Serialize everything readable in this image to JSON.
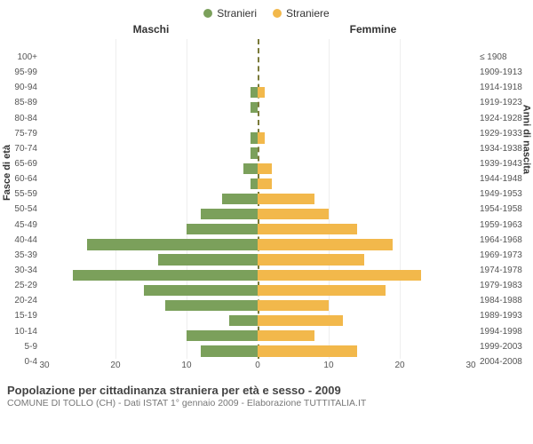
{
  "legend": {
    "male": {
      "label": "Stranieri",
      "color": "#7ba05b"
    },
    "female": {
      "label": "Straniere",
      "color": "#f2b84b"
    }
  },
  "headers": {
    "left": "Maschi",
    "right": "Femmine"
  },
  "axis": {
    "left_title": "Fasce di età",
    "right_title": "Anni di nascita",
    "xmax": 30,
    "xticks": [
      30,
      20,
      10,
      0,
      10,
      20,
      30
    ]
  },
  "chart": {
    "type": "population-pyramid",
    "background_color": "#ffffff",
    "grid_color": "#eeeeee",
    "centerline_color": "#7a7a3a",
    "male_color": "#7ba05b",
    "female_color": "#f2b84b",
    "rows": [
      {
        "age": "100+",
        "birth": "≤ 1908",
        "m": 0,
        "f": 0
      },
      {
        "age": "95-99",
        "birth": "1909-1913",
        "m": 0,
        "f": 0
      },
      {
        "age": "90-94",
        "birth": "1914-1918",
        "m": 0,
        "f": 0
      },
      {
        "age": "85-89",
        "birth": "1919-1923",
        "m": 1,
        "f": 1
      },
      {
        "age": "80-84",
        "birth": "1924-1928",
        "m": 1,
        "f": 0
      },
      {
        "age": "75-79",
        "birth": "1929-1933",
        "m": 0,
        "f": 0
      },
      {
        "age": "70-74",
        "birth": "1934-1938",
        "m": 1,
        "f": 1
      },
      {
        "age": "65-69",
        "birth": "1939-1943",
        "m": 1,
        "f": 0
      },
      {
        "age": "60-64",
        "birth": "1944-1948",
        "m": 2,
        "f": 2
      },
      {
        "age": "55-59",
        "birth": "1949-1953",
        "m": 1,
        "f": 2
      },
      {
        "age": "50-54",
        "birth": "1954-1958",
        "m": 5,
        "f": 8
      },
      {
        "age": "45-49",
        "birth": "1959-1963",
        "m": 8,
        "f": 10
      },
      {
        "age": "40-44",
        "birth": "1964-1968",
        "m": 10,
        "f": 14
      },
      {
        "age": "35-39",
        "birth": "1969-1973",
        "m": 24,
        "f": 19
      },
      {
        "age": "30-34",
        "birth": "1974-1978",
        "m": 14,
        "f": 15
      },
      {
        "age": "25-29",
        "birth": "1979-1983",
        "m": 26,
        "f": 23
      },
      {
        "age": "20-24",
        "birth": "1984-1988",
        "m": 16,
        "f": 18
      },
      {
        "age": "15-19",
        "birth": "1989-1993",
        "m": 13,
        "f": 10
      },
      {
        "age": "10-14",
        "birth": "1994-1998",
        "m": 4,
        "f": 12
      },
      {
        "age": "5-9",
        "birth": "1999-2003",
        "m": 10,
        "f": 8
      },
      {
        "age": "0-4",
        "birth": "2004-2008",
        "m": 8,
        "f": 14
      }
    ]
  },
  "footer": {
    "title": "Popolazione per cittadinanza straniera per età e sesso - 2009",
    "subtitle": "COMUNE DI TOLLO (CH) - Dati ISTAT 1° gennaio 2009 - Elaborazione TUTTITALIA.IT"
  }
}
